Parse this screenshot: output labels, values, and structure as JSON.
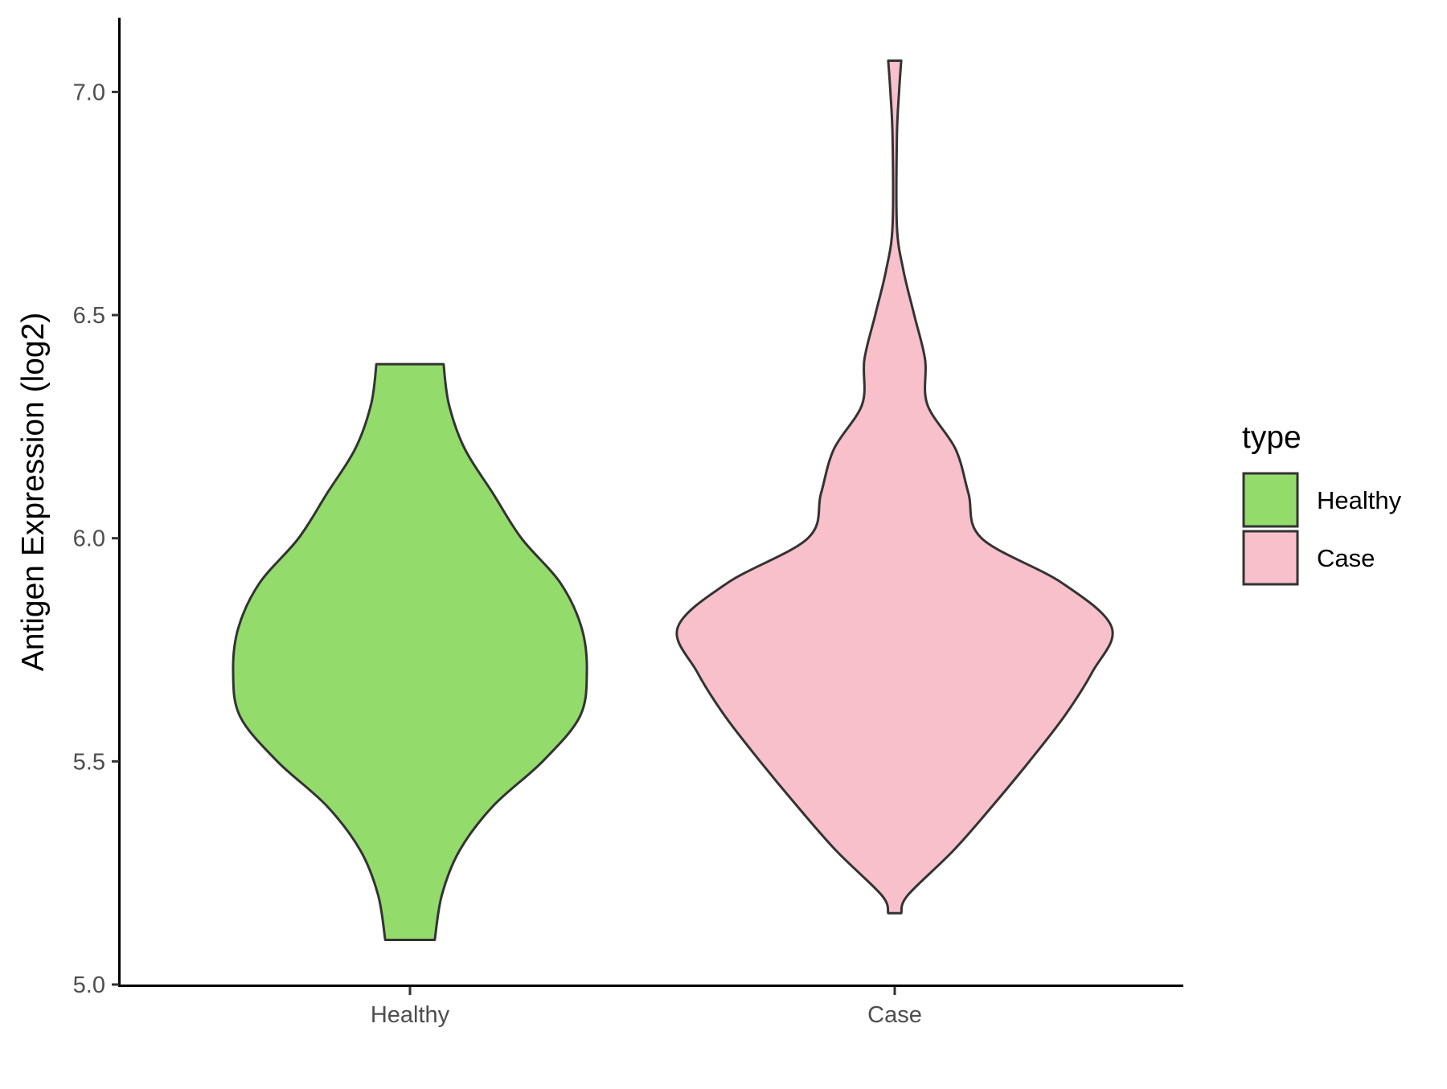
{
  "chart_data": {
    "type": "violin",
    "title": "",
    "xlabel": "",
    "ylabel": "Antigen Expression (log2)",
    "categories": [
      "Healthy",
      "Case"
    ],
    "ylim": [
      5.0,
      7.15
    ],
    "yticks": [
      "5.0",
      "5.5",
      "6.0",
      "6.5",
      "7.0"
    ],
    "ytick_values": [
      5.0,
      5.5,
      6.0,
      6.5,
      7.0
    ],
    "grid": false,
    "legend": {
      "title": "type",
      "position": "right",
      "entries": [
        {
          "label": "Healthy",
          "color": "#93DB6A"
        },
        {
          "label": "Case",
          "color": "#F7C0CB"
        }
      ]
    },
    "series": [
      {
        "category": "Healthy",
        "color": "#93DB6A",
        "min": 5.1,
        "max": 6.39,
        "density": [
          [
            5.1,
            0.14
          ],
          [
            5.2,
            0.18
          ],
          [
            5.3,
            0.28
          ],
          [
            5.4,
            0.47
          ],
          [
            5.5,
            0.75
          ],
          [
            5.6,
            0.96
          ],
          [
            5.7,
            1.0
          ],
          [
            5.8,
            0.97
          ],
          [
            5.9,
            0.85
          ],
          [
            6.0,
            0.63
          ],
          [
            6.1,
            0.47
          ],
          [
            6.2,
            0.31
          ],
          [
            6.3,
            0.22
          ],
          [
            6.39,
            0.19
          ]
        ]
      },
      {
        "category": "Case",
        "color": "#F7C0CB",
        "min": 5.16,
        "max": 7.07,
        "density": [
          [
            5.16,
            0.03
          ],
          [
            5.2,
            0.06
          ],
          [
            5.3,
            0.27
          ],
          [
            5.4,
            0.45
          ],
          [
            5.5,
            0.62
          ],
          [
            5.6,
            0.78
          ],
          [
            5.7,
            0.91
          ],
          [
            5.8,
            1.0
          ],
          [
            5.9,
            0.77
          ],
          [
            6.0,
            0.4
          ],
          [
            6.1,
            0.34
          ],
          [
            6.2,
            0.28
          ],
          [
            6.3,
            0.15
          ],
          [
            6.4,
            0.14
          ],
          [
            6.5,
            0.09
          ],
          [
            6.6,
            0.04
          ],
          [
            6.7,
            0.01
          ],
          [
            6.9,
            0.01
          ],
          [
            7.0,
            0.02
          ],
          [
            7.07,
            0.03
          ]
        ]
      }
    ]
  }
}
